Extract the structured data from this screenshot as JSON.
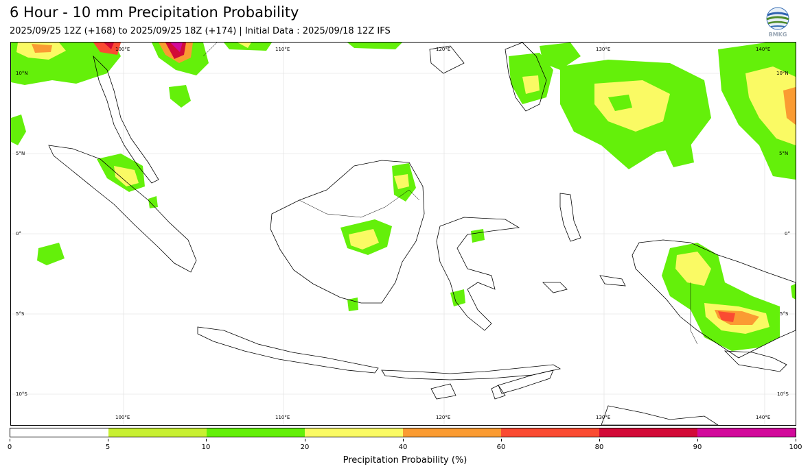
{
  "header": {
    "title": "6 Hour - 10 mm Precipitation Probability",
    "subtitle": "2025/09/25 12Z (+168) to 2025/09/25 18Z (+174) | Initial Data : 2025/09/18 12Z IFS"
  },
  "logo": {
    "text": "BMKG",
    "icon": "bmkg-globe-logo"
  },
  "map": {
    "lon_labels": [
      "100°E",
      "110°E",
      "120°E",
      "130°E",
      "140°E"
    ],
    "lat_labels": [
      "10°N",
      "5°N",
      "0°",
      "5°S",
      "10°S"
    ],
    "grid": true
  },
  "colorbar": {
    "title": "Precipitation Probability (%)",
    "ticks": [
      "0",
      "5",
      "10",
      "20",
      "40",
      "60",
      "80",
      "90",
      "100"
    ],
    "colors": [
      "#ffffff",
      "#c8f032",
      "#64f00a",
      "#fafa64",
      "#fa9b32",
      "#fa4b32",
      "#d20a37",
      "#d20a9b"
    ]
  }
}
